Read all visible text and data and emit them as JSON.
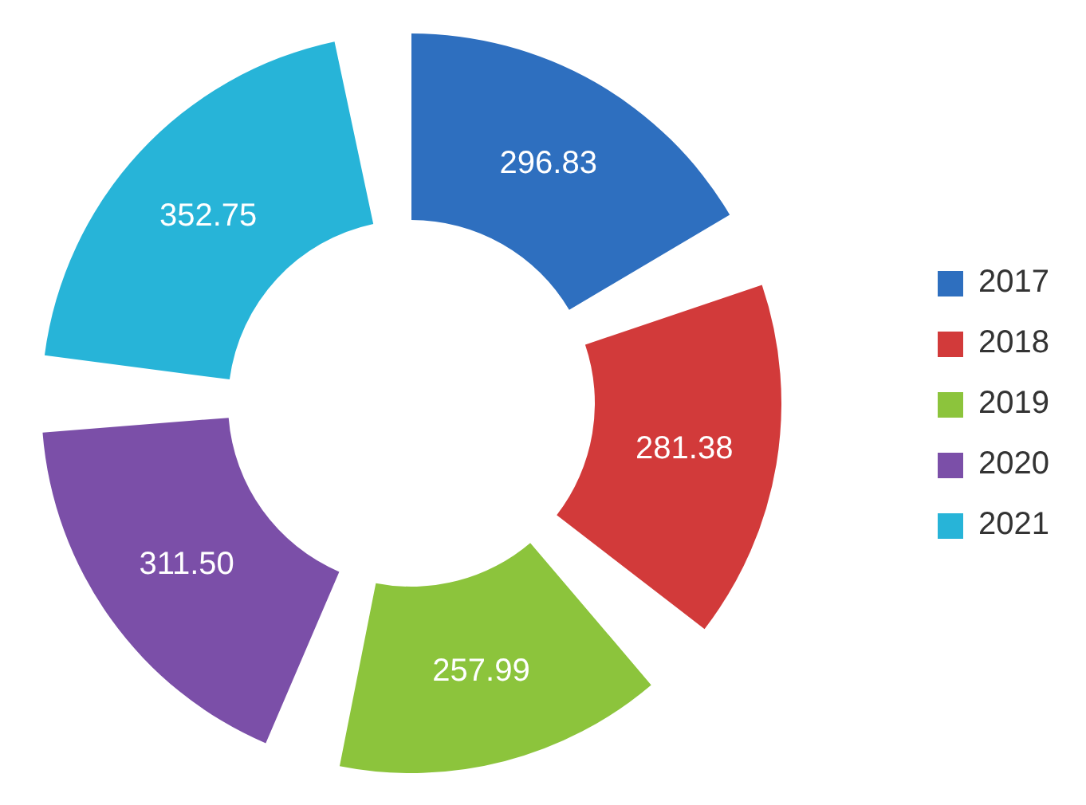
{
  "chart_data": {
    "type": "donut",
    "categories": [
      "2017",
      "2018",
      "2019",
      "2020",
      "2021"
    ],
    "values": [
      296.83,
      281.38,
      257.99,
      311.5,
      352.75
    ],
    "colors": [
      "#2e6fbf",
      "#d23a3a",
      "#8cc43c",
      "#7b4fa8",
      "#27b4d8"
    ],
    "value_labels": [
      "296.83",
      "281.38",
      "257.99",
      "311.50",
      "352.75"
    ],
    "legend": "right"
  }
}
